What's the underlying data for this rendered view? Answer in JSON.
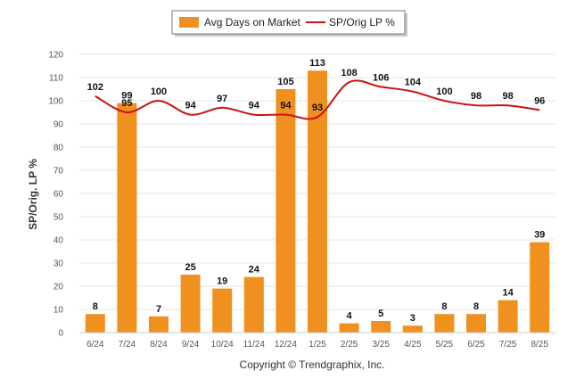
{
  "footer": {
    "copyright": "Copyright © Trendgraphix, Inc."
  },
  "chart_data": {
    "type": "bar",
    "categories": [
      "6/24",
      "7/24",
      "8/24",
      "9/24",
      "10/24",
      "11/24",
      "12/24",
      "1/25",
      "2/25",
      "3/25",
      "4/25",
      "5/25",
      "6/25",
      "7/25",
      "8/25"
    ],
    "series": [
      {
        "name": "Avg Days on Market",
        "type": "bar",
        "color": "#f0901e",
        "values": [
          8,
          99,
          7,
          25,
          19,
          24,
          105,
          113,
          4,
          5,
          3,
          8,
          8,
          14,
          39
        ]
      },
      {
        "name": "SP/Orig LP %",
        "type": "line",
        "color": "#cc1111",
        "values": [
          102,
          95,
          100,
          94,
          97,
          94,
          94,
          93,
          108,
          106,
          104,
          100,
          98,
          98,
          96
        ]
      }
    ],
    "ylabel": "SP/Orig. LP %",
    "ylim": [
      0,
      120
    ],
    "yticks": [
      0,
      10,
      20,
      30,
      40,
      50,
      60,
      70,
      80,
      90,
      100,
      110,
      120
    ],
    "grid": true,
    "legend": "top-center"
  }
}
